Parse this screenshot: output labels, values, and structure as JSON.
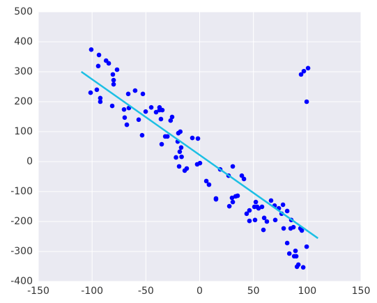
{
  "chart_data": {
    "type": "scatter",
    "x": [
      -100.8,
      -93.6,
      -87,
      -84.5,
      -76.8,
      -80.7,
      -80,
      -80,
      -94.3,
      -95.6,
      -101.4,
      -92.4,
      -92.4,
      -81.3,
      -66.4,
      -60,
      -52.8,
      -70.3,
      -65.8,
      -69.7,
      -67.7,
      -56.7,
      -50.2,
      -45,
      -40.5,
      -37.3,
      -37.3,
      -34.7,
      -36,
      -27,
      -25.6,
      -30,
      -32,
      -35.3,
      -53.5,
      -19.8,
      -18,
      -20.4,
      -17.2,
      -18.5,
      -16.8,
      -22,
      -19.1,
      -12,
      -13.9,
      -6.8,
      -1.6,
      -2.3,
      0.3,
      6.2,
      8.7,
      19.1,
      15.2,
      15.2,
      26.9,
      30.8,
      33.4,
      35.3,
      27.6,
      30.8,
      30.1,
      39.2,
      41.2,
      43.7,
      46.3,
      46.3,
      51.5,
      52.2,
      50.9,
      53.5,
      54.8,
      58,
      60,
      62.5,
      59.3,
      66.4,
      69.7,
      70.3,
      73.6,
      76.2,
      77.5,
      81.4,
      78.1,
      84.6,
      85.2,
      87.2,
      89.1,
      89.8,
      87.9,
      81.4,
      83.4,
      93.7,
      95,
      99.5,
      96.3,
      91.8,
      90.5,
      94.3,
      96.9,
      100.8,
      99.5
    ],
    "y": [
      374,
      356,
      337,
      328,
      307,
      291,
      272,
      258,
      319,
      240,
      230,
      212,
      200,
      186,
      226,
      237,
      226,
      174,
      179,
      147,
      123,
      140,
      167,
      181,
      165,
      172,
      181,
      172,
      142,
      137,
      149,
      84,
      84,
      58,
      88,
      95,
      100,
      67,
      47,
      33,
      16,
      14,
      -16,
      -23,
      -30,
      79,
      77,
      -9,
      -5,
      -65,
      -77,
      -26,
      -123,
      -126,
      -47,
      -16,
      -116,
      -114,
      -149,
      -135,
      -121,
      -47,
      -58,
      -174,
      -163,
      -198,
      -195,
      -135,
      -151,
      -151,
      -156,
      -151,
      -188,
      -200,
      -228,
      -130,
      -147,
      -195,
      -156,
      -174,
      -144,
      -165,
      -223,
      -223,
      -195,
      -219,
      -298,
      -316,
      -316,
      -272,
      -307,
      -223,
      -230,
      -284,
      -353,
      -344,
      -351,
      291,
      302,
      312,
      200
    ],
    "color": "#0000ff",
    "line": {
      "x": [
        -110,
        110
      ],
      "y": [
        300,
        -256
      ],
      "color": "#1cbfe4"
    },
    "xlim": [
      -150,
      150
    ],
    "xticks": [
      -150,
      -100,
      -50,
      0,
      50,
      100,
      150
    ],
    "ylim": [
      -400,
      500
    ],
    "yticks": [
      -400,
      -300,
      -200,
      -100,
      0,
      100,
      200,
      300,
      400,
      500
    ],
    "grid": true
  }
}
